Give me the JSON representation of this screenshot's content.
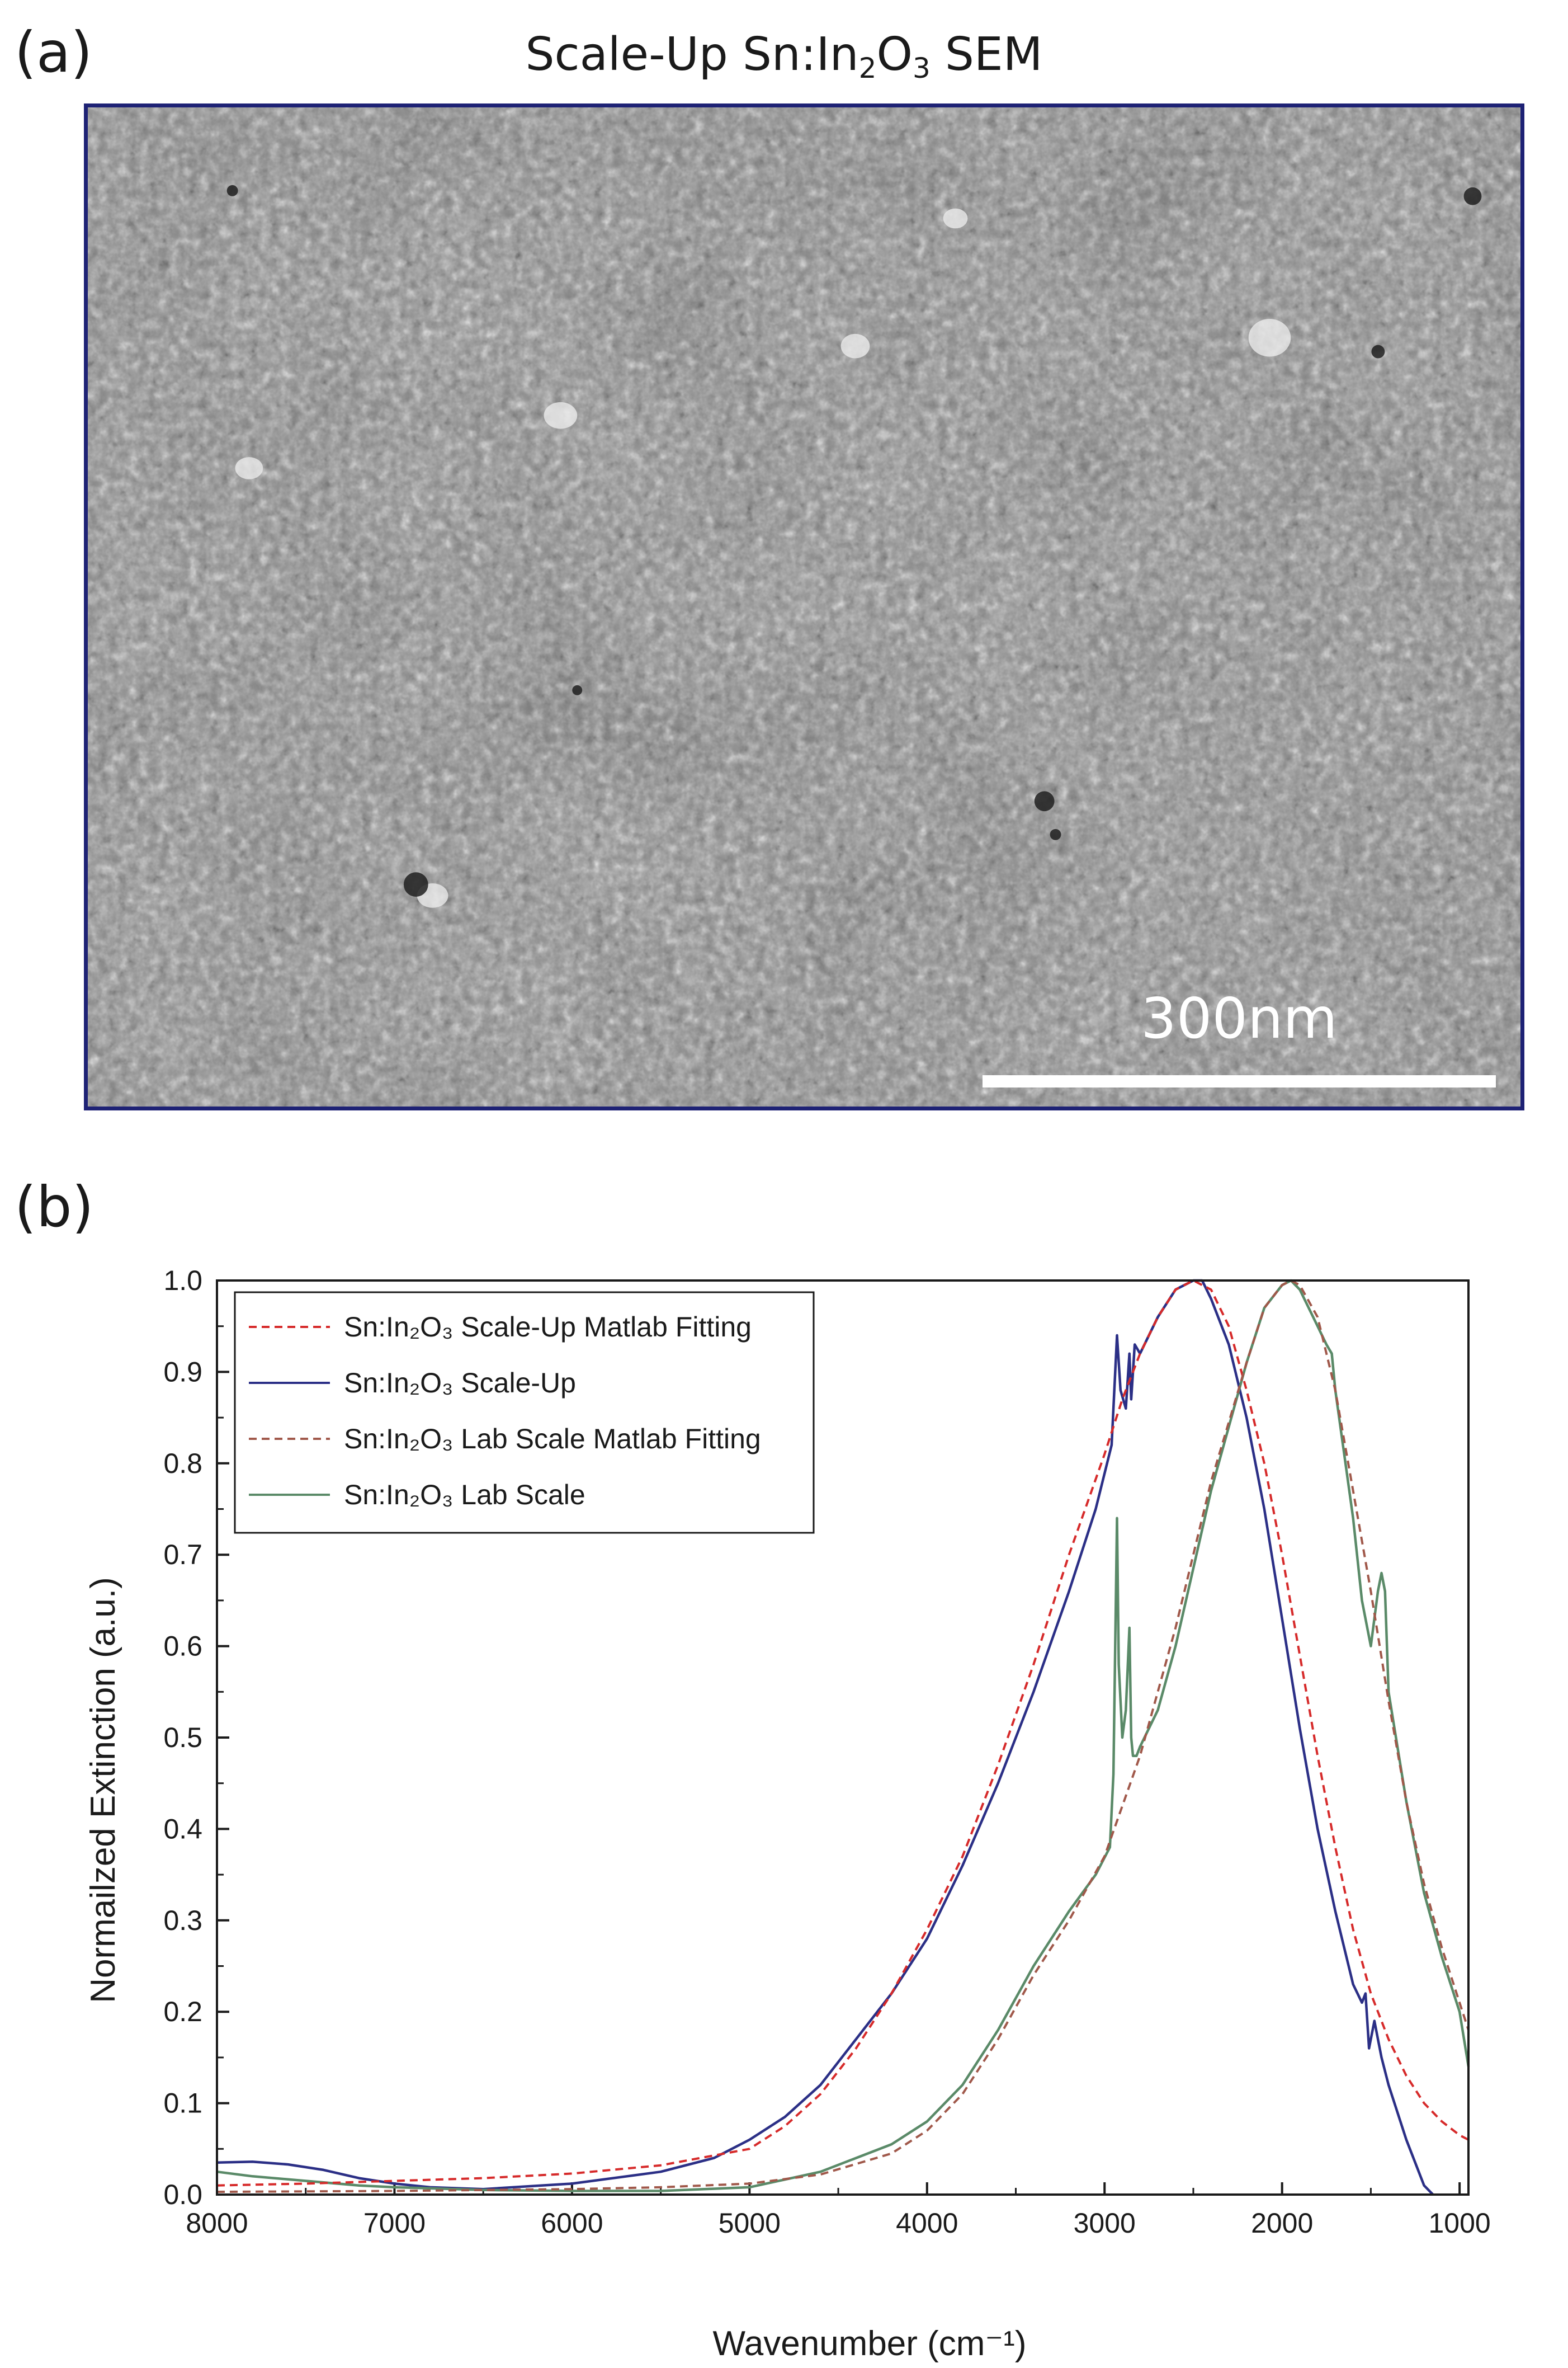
{
  "panel_a": {
    "label": "(a)",
    "title": {
      "prefix": "Scale-Up Sn:In",
      "sub1": "2",
      "mid": "O",
      "sub2": "3",
      "suffix": " SEM"
    },
    "scale_bar_label": "300nm"
  },
  "panel_b": {
    "label": "(b)"
  },
  "chart_data": {
    "type": "line",
    "xlabel": "Wavenumber (cm⁻¹)",
    "ylabel": "Normailzed Extinction (a.u.)",
    "xlim": [
      8000,
      950
    ],
    "ylim": [
      0.0,
      1.0
    ],
    "x_reversed": true,
    "x_ticks": [
      8000,
      7000,
      6000,
      5000,
      4000,
      3000,
      2000,
      1000
    ],
    "y_ticks": [
      0.0,
      0.1,
      0.2,
      0.3,
      0.4,
      0.5,
      0.6,
      0.7,
      0.8,
      0.9,
      1.0
    ],
    "legend_position": "top-left",
    "series": [
      {
        "name": "Sn:In₂O₃ Scale-Up Matlab Fitting",
        "style": "dashed",
        "color": "#d62a2a",
        "x": [
          8000,
          7500,
          7000,
          6500,
          6000,
          5500,
          5000,
          4800,
          4600,
          4400,
          4200,
          4000,
          3800,
          3600,
          3400,
          3200,
          3000,
          2900,
          2800,
          2700,
          2600,
          2500,
          2400,
          2300,
          2200,
          2100,
          2000,
          1900,
          1800,
          1700,
          1600,
          1500,
          1400,
          1300,
          1200,
          1100,
          1000,
          950
        ],
        "y": [
          0.01,
          0.012,
          0.015,
          0.018,
          0.023,
          0.032,
          0.05,
          0.075,
          0.11,
          0.16,
          0.22,
          0.29,
          0.37,
          0.47,
          0.58,
          0.7,
          0.81,
          0.87,
          0.92,
          0.96,
          0.99,
          1.0,
          0.99,
          0.95,
          0.88,
          0.8,
          0.7,
          0.59,
          0.48,
          0.38,
          0.29,
          0.22,
          0.17,
          0.13,
          0.1,
          0.08,
          0.065,
          0.06
        ]
      },
      {
        "name": "Sn:In₂O₃ Scale-Up",
        "style": "solid",
        "color": "#2b2f86",
        "x": [
          8000,
          7800,
          7600,
          7400,
          7200,
          7000,
          6800,
          6500,
          6000,
          5500,
          5200,
          5000,
          4800,
          4600,
          4400,
          4200,
          4000,
          3800,
          3600,
          3400,
          3200,
          3050,
          2960,
          2930,
          2910,
          2880,
          2860,
          2850,
          2830,
          2800,
          2750,
          2700,
          2600,
          2500,
          2450,
          2400,
          2300,
          2200,
          2100,
          2000,
          1900,
          1800,
          1700,
          1600,
          1550,
          1530,
          1510,
          1480,
          1460,
          1440,
          1400,
          1300,
          1200,
          1150
        ],
        "y": [
          0.035,
          0.036,
          0.033,
          0.027,
          0.018,
          0.012,
          0.008,
          0.006,
          0.012,
          0.025,
          0.04,
          0.06,
          0.085,
          0.12,
          0.17,
          0.22,
          0.28,
          0.36,
          0.45,
          0.55,
          0.66,
          0.75,
          0.82,
          0.94,
          0.88,
          0.86,
          0.92,
          0.87,
          0.93,
          0.92,
          0.94,
          0.96,
          0.99,
          1.0,
          1.0,
          0.98,
          0.93,
          0.85,
          0.75,
          0.63,
          0.51,
          0.4,
          0.31,
          0.23,
          0.21,
          0.22,
          0.16,
          0.19,
          0.17,
          0.15,
          0.12,
          0.06,
          0.01,
          0.0
        ]
      },
      {
        "name": "Sn:In₂O₃ Lab Scale Matlab Fitting",
        "style": "dashed",
        "color": "#a0584a",
        "x": [
          8000,
          7000,
          6000,
          5500,
          5000,
          4600,
          4200,
          4000,
          3800,
          3600,
          3400,
          3200,
          3000,
          2800,
          2600,
          2400,
          2200,
          2100,
          2000,
          1950,
          1900,
          1800,
          1700,
          1600,
          1500,
          1400,
          1300,
          1200,
          1100,
          1000,
          950
        ],
        "y": [
          0.003,
          0.004,
          0.006,
          0.008,
          0.012,
          0.022,
          0.045,
          0.07,
          0.11,
          0.17,
          0.24,
          0.3,
          0.37,
          0.48,
          0.62,
          0.78,
          0.91,
          0.97,
          0.995,
          1.0,
          0.995,
          0.96,
          0.88,
          0.77,
          0.66,
          0.54,
          0.43,
          0.34,
          0.27,
          0.21,
          0.18
        ]
      },
      {
        "name": "Sn:In₂O₃ Lab Scale",
        "style": "solid",
        "color": "#5a8a68",
        "x": [
          8000,
          7800,
          7500,
          7200,
          7000,
          6500,
          6000,
          5500,
          5000,
          4600,
          4200,
          4000,
          3800,
          3600,
          3400,
          3200,
          3050,
          2970,
          2950,
          2930,
          2920,
          2900,
          2880,
          2860,
          2850,
          2840,
          2820,
          2800,
          2700,
          2600,
          2400,
          2200,
          2100,
          2000,
          1950,
          1900,
          1800,
          1750,
          1720,
          1700,
          1600,
          1550,
          1500,
          1460,
          1440,
          1420,
          1400,
          1300,
          1200,
          1100,
          1000,
          950
        ],
        "y": [
          0.025,
          0.02,
          0.015,
          0.01,
          0.008,
          0.005,
          0.004,
          0.004,
          0.008,
          0.025,
          0.055,
          0.08,
          0.12,
          0.18,
          0.25,
          0.31,
          0.35,
          0.38,
          0.46,
          0.74,
          0.58,
          0.5,
          0.53,
          0.62,
          0.5,
          0.48,
          0.48,
          0.49,
          0.53,
          0.6,
          0.77,
          0.91,
          0.97,
          0.995,
          1.0,
          0.99,
          0.95,
          0.93,
          0.92,
          0.88,
          0.74,
          0.65,
          0.6,
          0.66,
          0.68,
          0.66,
          0.55,
          0.43,
          0.33,
          0.26,
          0.2,
          0.14
        ]
      }
    ]
  }
}
